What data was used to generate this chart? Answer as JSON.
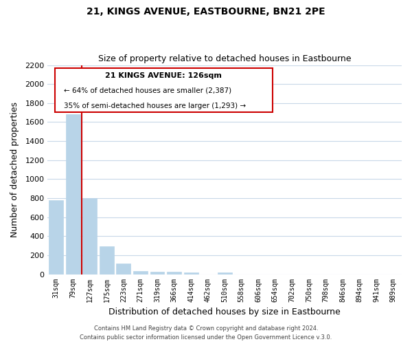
{
  "title": "21, KINGS AVENUE, EASTBOURNE, BN21 2PE",
  "subtitle": "Size of property relative to detached houses in Eastbourne",
  "xlabel": "Distribution of detached houses by size in Eastbourne",
  "ylabel": "Number of detached properties",
  "bar_labels": [
    "31sqm",
    "79sqm",
    "127sqm",
    "175sqm",
    "223sqm",
    "271sqm",
    "319sqm",
    "366sqm",
    "414sqm",
    "462sqm",
    "510sqm",
    "558sqm",
    "606sqm",
    "654sqm",
    "702sqm",
    "750sqm",
    "798sqm",
    "846sqm",
    "894sqm",
    "941sqm",
    "989sqm"
  ],
  "bar_values": [
    780,
    1680,
    800,
    295,
    110,
    35,
    25,
    25,
    20,
    0,
    18,
    0,
    0,
    0,
    0,
    0,
    0,
    0,
    0,
    0,
    0
  ],
  "bar_color": "#b8d4e8",
  "highlight_line_color": "#cc0000",
  "highlight_bar_index": 1,
  "annotation_title": "21 KINGS AVENUE: 126sqm",
  "annotation_line1": "← 64% of detached houses are smaller (2,387)",
  "annotation_line2": "35% of semi-detached houses are larger (1,293) →",
  "annotation_box_color": "#cc0000",
  "ylim": [
    0,
    2200
  ],
  "yticks": [
    0,
    200,
    400,
    600,
    800,
    1000,
    1200,
    1400,
    1600,
    1800,
    2000,
    2200
  ],
  "footer_line1": "Contains HM Land Registry data © Crown copyright and database right 2024.",
  "footer_line2": "Contains public sector information licensed under the Open Government Licence v.3.0.",
  "grid_color": "#c8d8e8",
  "background_color": "#ffffff"
}
